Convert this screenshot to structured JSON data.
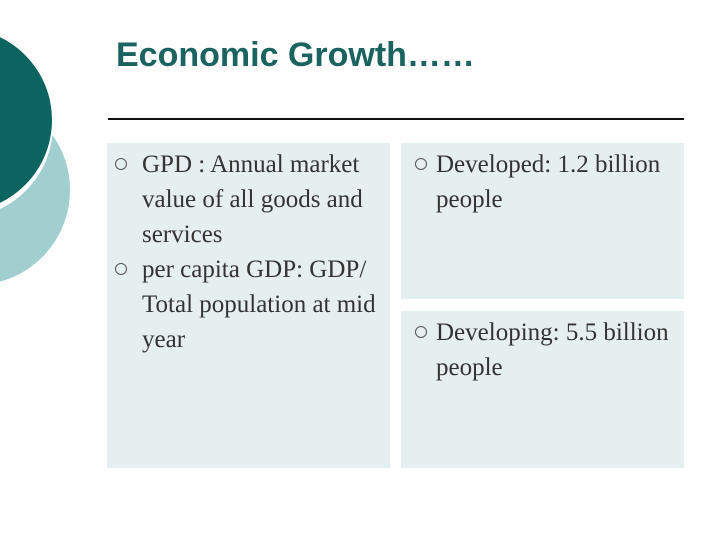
{
  "slide": {
    "title": "Economic Growth……",
    "left_bullets": [
      "GPD : Annual market value of all goods and services",
      "per capita GDP: GDP/ Total population at mid year"
    ],
    "top_right_bullet": "Developed: 1.2 billion people",
    "bottom_right_bullet": "Developing: 5.5 billion people"
  },
  "theme": {
    "title_color": "#1a6360",
    "panel_color": "#e6eff0",
    "deco_dark": "#0b6460",
    "deco_light": "#a1cfd0"
  }
}
